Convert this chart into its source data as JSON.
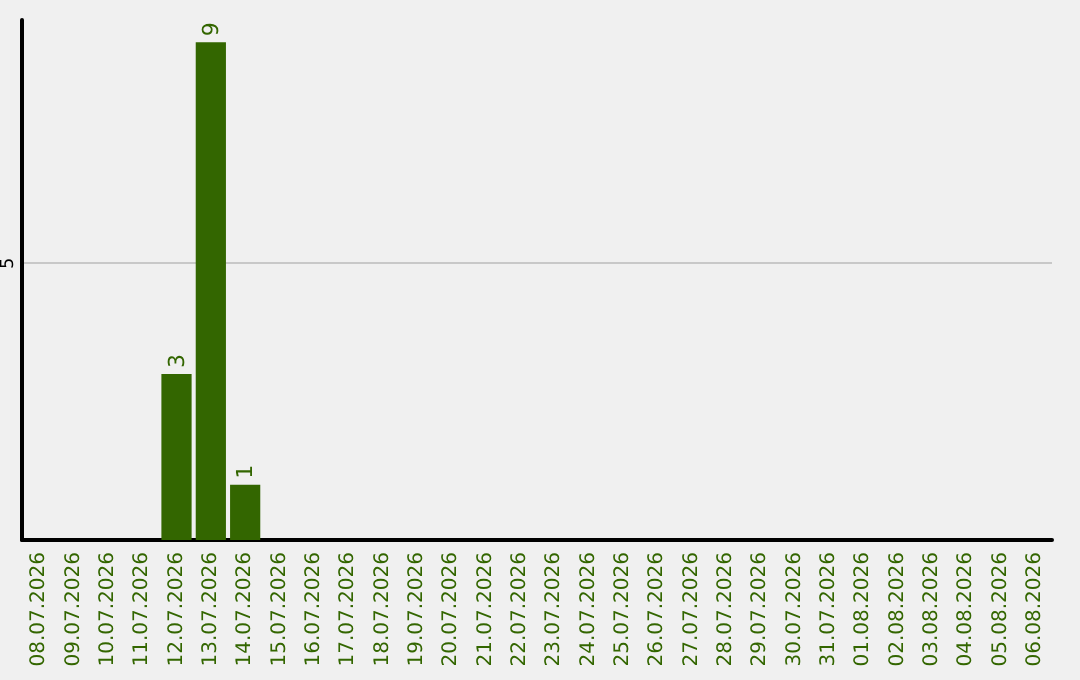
{
  "chart_data": {
    "type": "bar",
    "categories": [
      "08.07.2026",
      "09.07.2026",
      "10.07.2026",
      "11.07.2026",
      "12.07.2026",
      "13.07.2026",
      "14.07.2026",
      "15.07.2026",
      "16.07.2026",
      "17.07.2026",
      "18.07.2026",
      "19.07.2026",
      "20.07.2026",
      "21.07.2026",
      "22.07.2026",
      "23.07.2026",
      "24.07.2026",
      "25.07.2026",
      "26.07.2026",
      "27.07.2026",
      "28.07.2026",
      "29.07.2026",
      "30.07.2026",
      "31.07.2026",
      "01.08.2026",
      "02.08.2026",
      "03.08.2026",
      "04.08.2026",
      "05.08.2026",
      "06.08.2026"
    ],
    "values": [
      null,
      null,
      null,
      null,
      3,
      9,
      1,
      null,
      null,
      null,
      null,
      null,
      null,
      null,
      null,
      null,
      null,
      null,
      null,
      null,
      null,
      null,
      null,
      null,
      null,
      null,
      null,
      null,
      null,
      null
    ],
    "value_labels": [
      null,
      null,
      null,
      null,
      "3",
      "9",
      "1",
      null,
      null,
      null,
      null,
      null,
      null,
      null,
      null,
      null,
      null,
      null,
      null,
      null,
      null,
      null,
      null,
      null,
      null,
      null,
      null,
      null,
      null,
      null
    ],
    "color": "#336600",
    "ylim": [
      0,
      9.4
    ],
    "yticks": [
      5
    ],
    "grid": "y"
  }
}
